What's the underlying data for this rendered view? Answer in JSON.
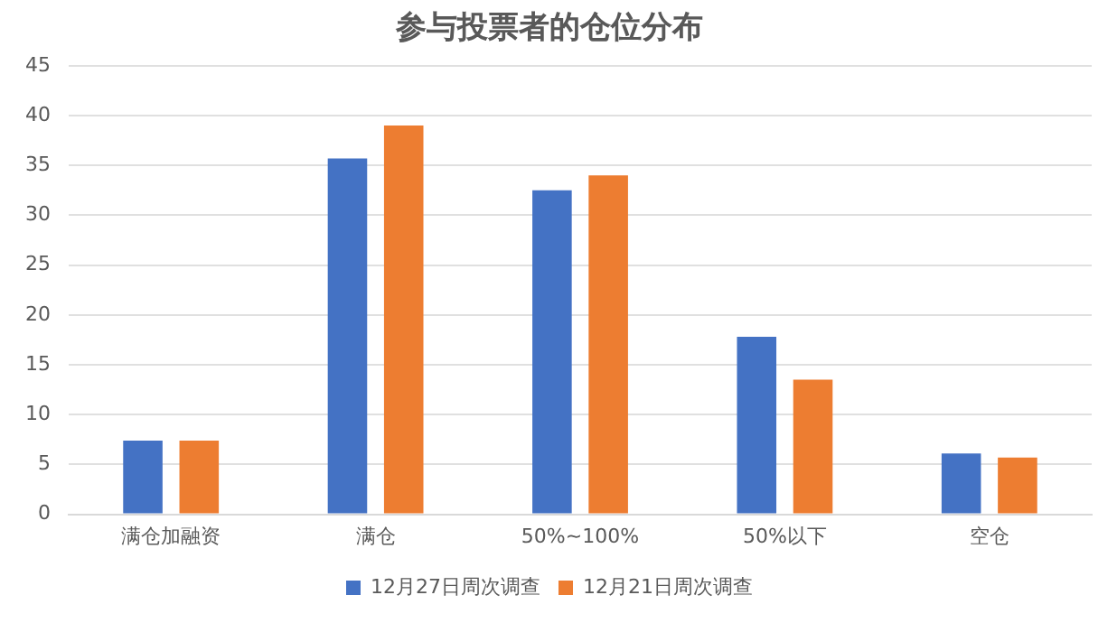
{
  "chart_data": {
    "type": "bar",
    "title": "参与投票者的仓位分布",
    "categories": [
      "满仓加融资",
      "满仓",
      "50%~100%",
      "50%以下",
      "空仓"
    ],
    "series": [
      {
        "name": "12月27日周次调查",
        "color": "#4472c4",
        "values": [
          7.4,
          35.7,
          32.5,
          17.8,
          6.1
        ]
      },
      {
        "name": "12月21日周次调查",
        "color": "#ed7d31",
        "values": [
          7.4,
          39.0,
          34.0,
          13.5,
          5.7
        ]
      }
    ],
    "ylim": [
      0,
      45
    ],
    "yticks": [
      0,
      5,
      10,
      15,
      20,
      25,
      30,
      35,
      40,
      45
    ],
    "grid": "y",
    "legend": "bottom"
  }
}
